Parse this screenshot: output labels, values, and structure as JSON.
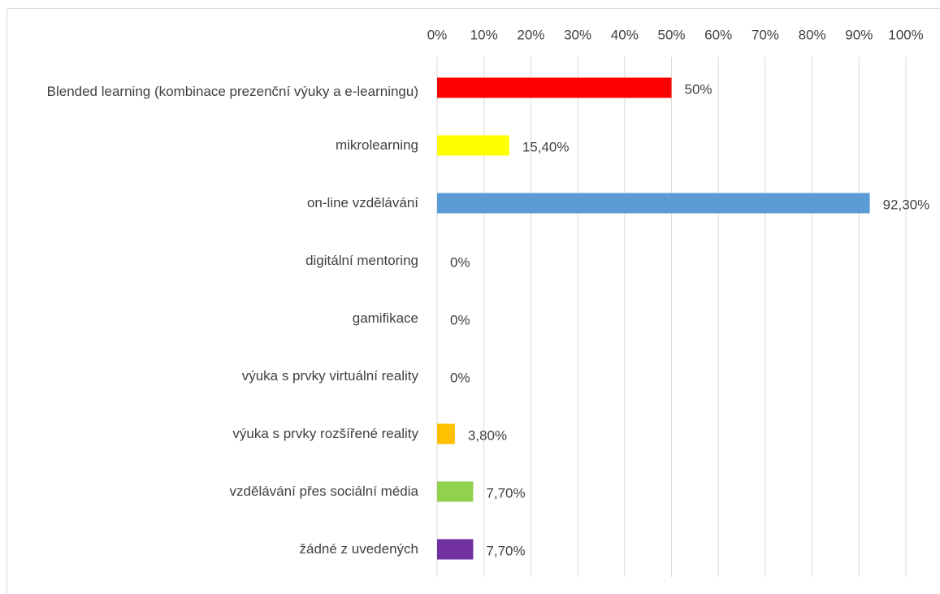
{
  "chart_data": {
    "type": "bar",
    "orientation": "horizontal",
    "categories": [
      "Blended learning (kombinace prezenční výuky a e-learningu)",
      "mikrolearning",
      "on-line vzdělávání",
      "digitální mentoring",
      "gamifikace",
      "výuka s prvky virtuální reality",
      "výuka s prvky rozšířené reality",
      "vzdělávání přes sociální média",
      "žádné z uvedených"
    ],
    "values": [
      50,
      15.4,
      92.3,
      0,
      0,
      0,
      3.8,
      7.7,
      7.7
    ],
    "value_labels": [
      "50%",
      "15,40%",
      "92,30%",
      "0%",
      "0%",
      "0%",
      "3,80%",
      "7,70%",
      "7,70%"
    ],
    "colors": [
      "#ff0000",
      "#ffff00",
      "#5b9bd5",
      null,
      null,
      null,
      "#ffc000",
      "#92d050",
      "#7030a0"
    ],
    "xlim": [
      0,
      100
    ],
    "xticks": [
      {
        "value": 0,
        "label": "0%"
      },
      {
        "value": 10,
        "label": "10%"
      },
      {
        "value": 20,
        "label": "20%"
      },
      {
        "value": 30,
        "label": "30%"
      },
      {
        "value": 40,
        "label": "40%"
      },
      {
        "value": 50,
        "label": "50%"
      },
      {
        "value": 60,
        "label": "60%"
      },
      {
        "value": 70,
        "label": "70%"
      },
      {
        "value": 80,
        "label": "80%"
      },
      {
        "value": 90,
        "label": "90%"
      },
      {
        "value": 100,
        "label": "100%"
      }
    ],
    "grid": true
  }
}
